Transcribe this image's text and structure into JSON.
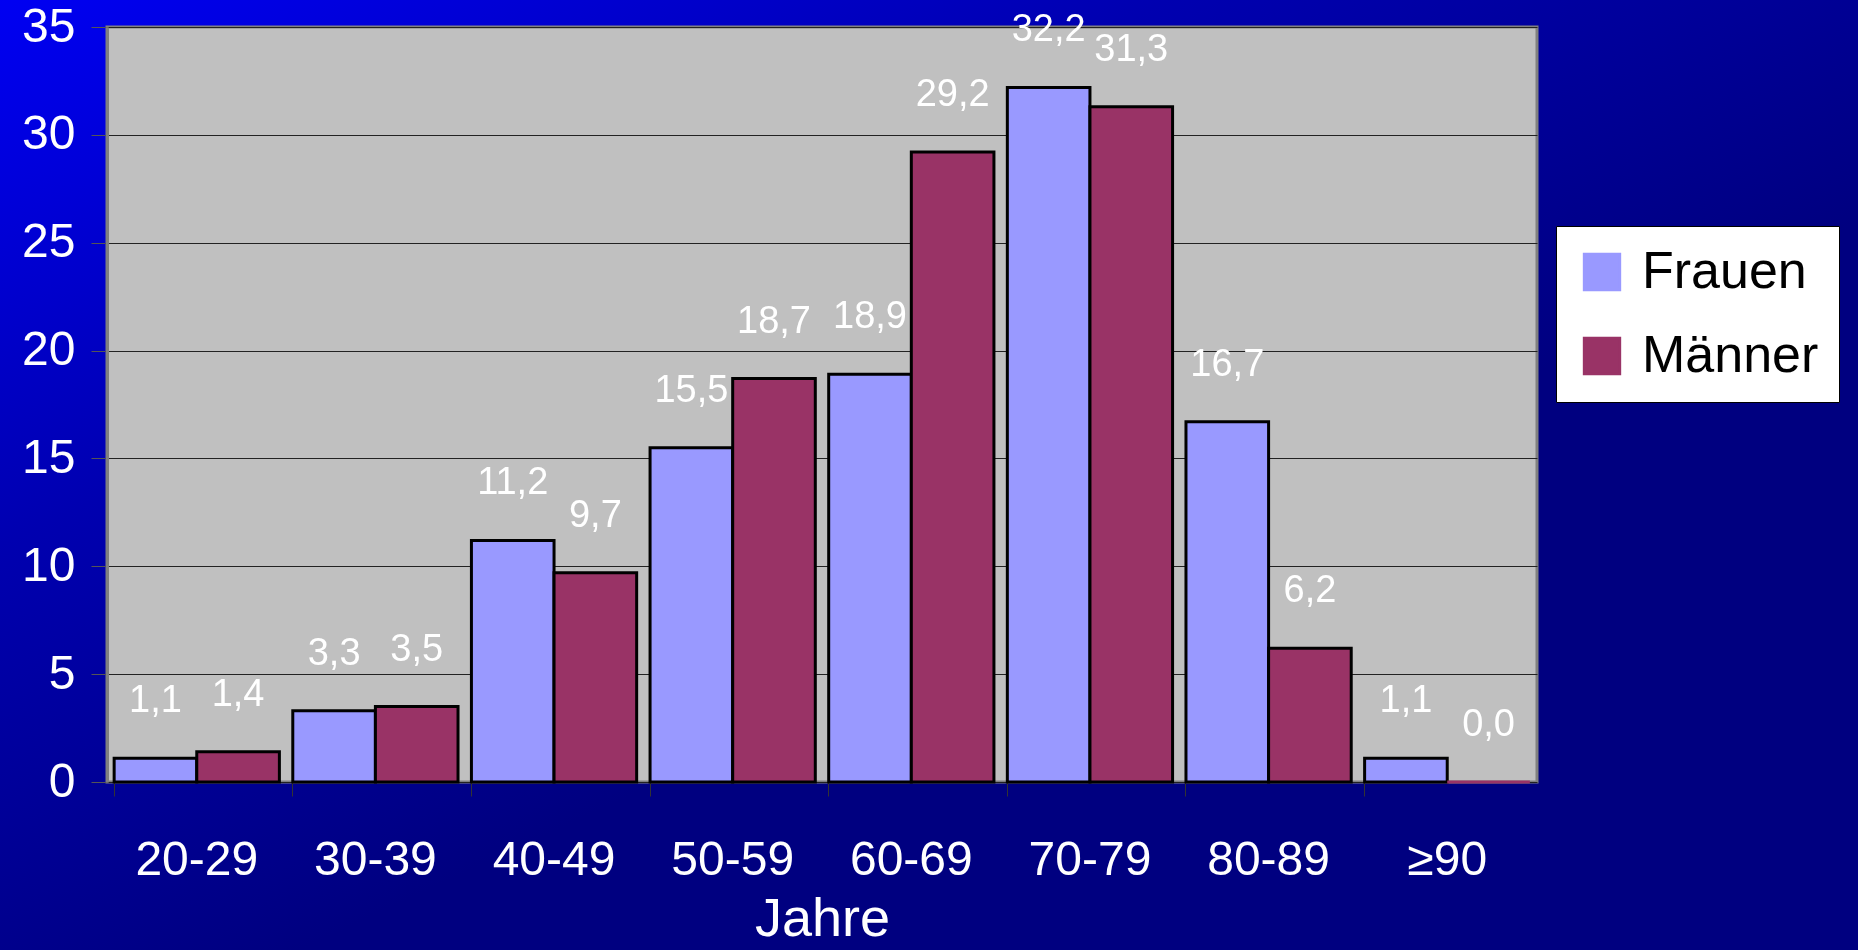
{
  "chart_data": {
    "type": "bar",
    "xlabel": "Jahre",
    "categories": [
      "20-29",
      "30-39",
      "40-49",
      "50-59",
      "60-69",
      "70-79",
      "80-89",
      "≥90"
    ],
    "series": [
      {
        "name": "Frauen",
        "color": "#9999ff",
        "values": [
          1.1,
          3.3,
          11.2,
          15.5,
          18.9,
          32.2,
          16.7,
          1.1
        ],
        "value_labels": [
          "1,1",
          "3,3",
          "11,2",
          "15,5",
          "18,9",
          "32,2",
          "16,7",
          "1,1"
        ]
      },
      {
        "name": "Männer",
        "color": "#993366",
        "values": [
          1.4,
          3.5,
          9.7,
          18.7,
          29.2,
          31.3,
          6.2,
          0.0
        ],
        "value_labels": [
          "1,4",
          "3,5",
          "9,7",
          "18,7",
          "29,2",
          "31,3",
          "6,2",
          "0,0"
        ]
      }
    ],
    "ylim": [
      0,
      35
    ],
    "yticks": [
      0,
      5,
      10,
      15,
      20,
      25,
      30,
      35
    ],
    "grid": "y",
    "legend": "right"
  }
}
